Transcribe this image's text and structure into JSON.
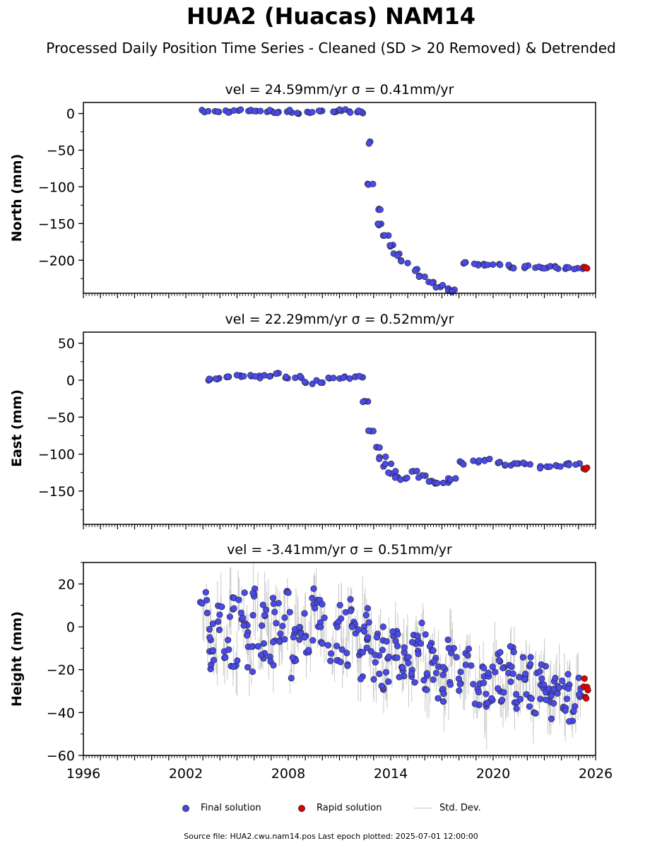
{
  "page": {
    "title": "HUA2 (Huacas) NAM14",
    "subtitle": "Processed Daily Position Time Series - Cleaned (SD > 20 Removed) & Detrended",
    "source": "Source file: HUA2.cwu.nam14.pos  Last epoch plotted: 2025-07-01 12:00:00"
  },
  "legend": [
    {
      "label": "Final solution",
      "kind": "dot",
      "color": "#4a4ae8"
    },
    {
      "label": "Rapid solution",
      "kind": "dot",
      "color": "#e00000"
    },
    {
      "label": "Std. Dev.",
      "kind": "line",
      "color": "#c8c8c8"
    }
  ],
  "chart_data": [
    {
      "type": "scatter",
      "title": "vel = 24.59mm/yr   σ = 0.41mm/yr",
      "ylabel": "North (mm)",
      "xlim": [
        1996,
        2026
      ],
      "ylim": [
        -245,
        15
      ],
      "xticks": [
        1996,
        2002,
        2008,
        2014,
        2020,
        2026
      ],
      "yticks": [
        0,
        -50,
        -100,
        -150,
        -200
      ],
      "series": [
        {
          "name": "Final solution",
          "color": "#4a4ae8",
          "x": [
            2003.2,
            2003.8,
            2004.4,
            2005.0,
            2005.6,
            2006.2,
            2006.8,
            2007.4,
            2008.0,
            2008.6,
            2009.2,
            2009.8,
            2010.6,
            2011.2,
            2011.8,
            2012.3,
            2012.6,
            2012.9,
            2013.2,
            2013.5,
            2013.8,
            2014.1,
            2014.4,
            2014.8,
            2015.3,
            2015.8,
            2016.3,
            2016.8,
            2017.3,
            2017.6,
            2018.3,
            2019.0,
            2019.6,
            2020.2,
            2020.8,
            2021.4,
            2022.0,
            2022.6,
            2023.2,
            2023.8,
            2024.4,
            2025.0
          ],
          "y": [
            3,
            2,
            3,
            4,
            3,
            4,
            3,
            2,
            3,
            1,
            2,
            3,
            3,
            4,
            3,
            2,
            -40,
            -95,
            -130,
            -152,
            -168,
            -180,
            -192,
            -202,
            -214,
            -222,
            -230,
            -236,
            -240,
            -242,
            -203,
            -205,
            -206,
            -207,
            -208,
            -209,
            -209,
            -210,
            -210,
            -210,
            -210,
            -210
          ]
        },
        {
          "name": "Rapid solution",
          "color": "#e00000",
          "x": [
            2025.3,
            2025.4,
            2025.5
          ],
          "y": [
            -209,
            -208,
            -210
          ]
        }
      ]
    },
    {
      "type": "scatter",
      "title": "vel = 22.29mm/yr   σ = 0.52mm/yr",
      "ylabel": "East (mm)",
      "xlim": [
        1996,
        2026
      ],
      "ylim": [
        -195,
        65
      ],
      "xticks": [
        1996,
        2002,
        2008,
        2014,
        2020,
        2026
      ],
      "yticks": [
        50,
        0,
        -50,
        -100,
        -150
      ],
      "series": [
        {
          "name": "Final solution",
          "color": "#4a4ae8",
          "x": [
            2003.2,
            2003.8,
            2004.4,
            2005.0,
            2005.6,
            2006.2,
            2006.8,
            2007.4,
            2008.0,
            2008.6,
            2009.2,
            2009.8,
            2010.6,
            2011.2,
            2011.8,
            2012.3,
            2012.6,
            2012.9,
            2013.2,
            2013.5,
            2013.8,
            2014.1,
            2014.4,
            2014.8,
            2015.3,
            2015.8,
            2016.3,
            2016.8,
            2017.3,
            2017.6,
            2018.3,
            2019.0,
            2019.6,
            2020.2,
            2020.8,
            2021.4,
            2022.0,
            2022.6,
            2023.2,
            2023.8,
            2024.4,
            2025.0
          ],
          "y": [
            0,
            2,
            4,
            5,
            6,
            4,
            5,
            8,
            3,
            4,
            -3,
            -2,
            2,
            3,
            4,
            5,
            -30,
            -70,
            -92,
            -105,
            -115,
            -125,
            -130,
            -133,
            -124,
            -130,
            -137,
            -138,
            -137,
            -134,
            -112,
            -110,
            -108,
            -112,
            -116,
            -114,
            -112,
            -118,
            -117,
            -116,
            -114,
            -113
          ]
        },
        {
          "name": "Rapid solution",
          "color": "#e00000",
          "x": [
            2025.3,
            2025.4,
            2025.5
          ],
          "y": [
            -118,
            -120,
            -119
          ]
        }
      ]
    },
    {
      "type": "scatter",
      "title": "vel = -3.41mm/yr   σ = 0.51mm/yr",
      "ylabel": "Height (mm)",
      "xlim": [
        1996,
        2026
      ],
      "ylim": [
        -60,
        30
      ],
      "xticks": [
        1996,
        2002,
        2008,
        2014,
        2020,
        2026
      ],
      "yticks": [
        20,
        0,
        -20,
        -40,
        -60
      ],
      "series": [
        {
          "name": "Final solution",
          "color": "#4a4ae8",
          "x": [
            2003.1,
            2003.4,
            2003.7,
            2004.0,
            2004.3,
            2004.6,
            2004.9,
            2005.2,
            2005.5,
            2005.8,
            2006.1,
            2006.4,
            2006.7,
            2007.0,
            2007.3,
            2007.6,
            2007.9,
            2008.2,
            2008.5,
            2008.9,
            2009.2,
            2009.5,
            2009.8,
            2010.1,
            2010.7,
            2011.0,
            2011.3,
            2011.6,
            2011.9,
            2012.2,
            2012.5,
            2012.8,
            2013.1,
            2013.4,
            2013.7,
            2014.0,
            2014.3,
            2014.6,
            2014.9,
            2015.2,
            2015.5,
            2015.8,
            2016.1,
            2016.4,
            2016.7,
            2017.0,
            2017.3,
            2017.6,
            2018.2,
            2018.5,
            2019.0,
            2019.3,
            2019.6,
            2019.9,
            2020.2,
            2020.5,
            2020.8,
            2021.1,
            2021.4,
            2021.7,
            2022.0,
            2022.3,
            2022.6,
            2022.9,
            2023.2,
            2023.5,
            2023.8,
            2024.1,
            2024.4,
            2024.7,
            2025.0
          ],
          "y": [
            10,
            -5,
            -15,
            5,
            -10,
            8,
            -20,
            10,
            -3,
            -15,
            12,
            -8,
            5,
            -12,
            8,
            -4,
            10,
            -18,
            0,
            2,
            -6,
            14,
            6,
            -2,
            -10,
            5,
            -14,
            8,
            -4,
            -18,
            3,
            -8,
            -20,
            -6,
            -24,
            -10,
            -4,
            -18,
            -12,
            -22,
            -8,
            -2,
            -26,
            -14,
            -18,
            -30,
            -24,
            -10,
            -28,
            -14,
            -32,
            -22,
            -38,
            -28,
            -18,
            -30,
            -24,
            -16,
            -34,
            -26,
            -20,
            -38,
            -28,
            -22,
            -36,
            -30,
            -26,
            -34,
            -28,
            -38,
            -30
          ]
        },
        {
          "name": "Rapid solution",
          "color": "#e00000",
          "x": [
            2025.3,
            2025.35,
            2025.4,
            2025.45,
            2025.5,
            2025.55
          ],
          "y": [
            -26,
            -29,
            -32,
            -35,
            -30,
            -36
          ]
        }
      ],
      "std_dev": {
        "name": "Std. Dev.",
        "color": "#c8c8c8"
      }
    }
  ]
}
